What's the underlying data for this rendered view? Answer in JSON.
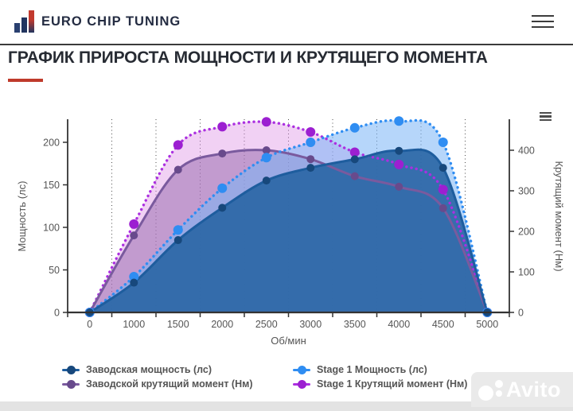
{
  "header": {
    "brand": "EURO CHIP TUNING",
    "menu_icon": "hamburger"
  },
  "page": {
    "title": "ГРАФИК ПРИРОСТА МОЩНОСТИ И КРУТЯЩЕГО МОМЕНТА"
  },
  "colors": {
    "accent_red": "#bf3a2b",
    "header_text": "#242c42",
    "title_text": "#272b33",
    "axis_text": "#555555",
    "axis_line": "#333333"
  },
  "chart_data": {
    "type": "area",
    "x_categories": [
      "0",
      "1000",
      "1500",
      "2000",
      "2500",
      "3000",
      "3500",
      "4000",
      "4500",
      "5000"
    ],
    "xlabel": "Об/мин",
    "grid": "vertical-dotted",
    "legend_position": "bottom",
    "y_left": {
      "label": "Мощность (лс)",
      "ticks": [
        0,
        50,
        100,
        150,
        200
      ],
      "range": [
        0,
        227
      ]
    },
    "y_right": {
      "label": "Крутящий момент (Нм)",
      "ticks": [
        0,
        100,
        200,
        300,
        400
      ],
      "range": [
        0,
        476
      ]
    },
    "series": [
      {
        "name": "Заводская мощность (лс)",
        "axis": "left",
        "line": "solid",
        "color": "#1e5d9e",
        "marker_color": "#17487c",
        "marker_r": 5,
        "fill": "rgba(43,103,166,0.92)",
        "values": [
          0,
          35,
          85,
          123,
          155,
          170,
          180,
          190,
          170,
          0
        ]
      },
      {
        "name": "Stage 1 Мощность (лс)",
        "axis": "left",
        "line": "dotted",
        "color": "#2f8df2",
        "marker_color": "#2f8df2",
        "marker_r": 6,
        "fill": "rgba(122,180,245,0.55)",
        "values": [
          0,
          42,
          97,
          146,
          182,
          200,
          217,
          225,
          200,
          0
        ]
      },
      {
        "name": "Заводской крутящий момент (Нм)",
        "axis": "right",
        "line": "solid",
        "color": "#7a5a9e",
        "marker_color": "#684a8c",
        "marker_r": 5,
        "fill": "rgba(148,102,170,0.50)",
        "values": [
          0,
          190,
          352,
          392,
          400,
          378,
          336,
          310,
          257,
          0
        ]
      },
      {
        "name": "Stage 1 Крутящий момент (Нм)",
        "axis": "right",
        "line": "dotted",
        "color": "#ab2fe0",
        "marker_color": "#9c1fd1",
        "marker_r": 6,
        "fill": "rgba(217,135,226,0.38)",
        "values": [
          0,
          218,
          413,
          458,
          470,
          445,
          395,
          365,
          303,
          0
        ]
      }
    ],
    "draw_order": [
      3,
      2,
      1,
      0
    ]
  },
  "watermark": {
    "label": "Avito"
  }
}
